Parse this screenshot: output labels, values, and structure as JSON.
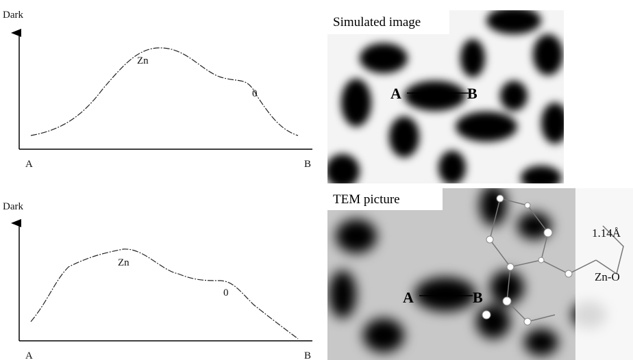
{
  "profiles": [
    {
      "y_label": "Dark",
      "peak_labels": [
        "Zn",
        "0"
      ],
      "x_start": "A",
      "x_end": "B"
    },
    {
      "y_label": "Dark",
      "peak_labels": [
        "Zn",
        "0"
      ],
      "x_start": "A",
      "x_end": "B"
    }
  ],
  "images": [
    {
      "title": "Simulated image",
      "line_start": "A",
      "line_end": "B"
    },
    {
      "title": "TEM picture",
      "line_start": "A",
      "line_end": "B",
      "annotations": [
        "1.14Å",
        "Zn-O"
      ]
    }
  ]
}
